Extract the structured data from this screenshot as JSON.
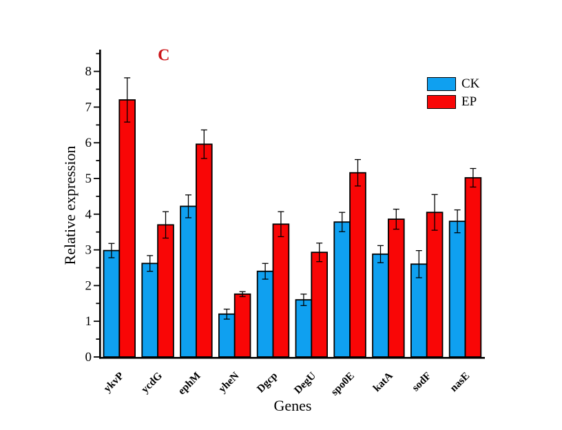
{
  "figure": {
    "panel_label": "C",
    "panel_label_color": "#CC1519",
    "background": "#FFFFFF"
  },
  "axes": {
    "y_label": "Relative expression",
    "x_label": "Genes",
    "y_ticks": [
      0,
      1,
      2,
      3,
      4,
      5,
      6,
      7,
      8
    ],
    "y_minor_step": 0.5,
    "axis_color": "#000000"
  },
  "legend": {
    "items": [
      {
        "label": "CK",
        "color": "#0FA0F0"
      },
      {
        "label": "EP",
        "color": "#F90606"
      }
    ]
  },
  "chart_data": {
    "type": "bar",
    "title": "",
    "xlabel": "Genes",
    "ylabel": "Relative expression",
    "ylim": [
      0,
      8.6
    ],
    "grid": false,
    "legend_position": "upper-right",
    "bar_outline": "#000000",
    "error_bar_color": "#000000",
    "categories": [
      "ykvP",
      "ycdG",
      "ephM",
      "yheN",
      "Dgcp",
      "DegU",
      "spo0E",
      "katA",
      "sodF",
      "nasE"
    ],
    "series": [
      {
        "name": "CK",
        "color": "#0FA0F0",
        "values": [
          2.98,
          2.62,
          4.22,
          1.2,
          2.4,
          1.6,
          3.78,
          2.88,
          2.6,
          3.8
        ],
        "errors": [
          0.2,
          0.22,
          0.32,
          0.14,
          0.22,
          0.16,
          0.27,
          0.24,
          0.38,
          0.32
        ]
      },
      {
        "name": "EP",
        "color": "#F90606",
        "values": [
          7.2,
          3.7,
          5.96,
          1.76,
          3.72,
          2.93,
          5.16,
          3.86,
          4.05,
          5.02
        ],
        "errors": [
          0.62,
          0.37,
          0.4,
          0.07,
          0.35,
          0.26,
          0.37,
          0.28,
          0.5,
          0.26
        ]
      }
    ]
  }
}
